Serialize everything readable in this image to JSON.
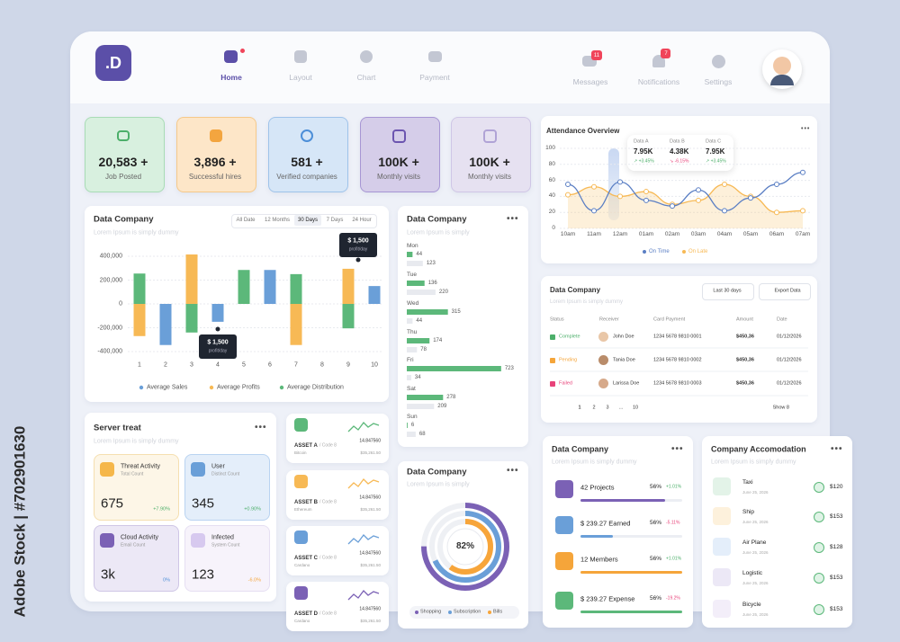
{
  "header": {
    "logo": ".D",
    "nav": [
      "Home",
      "Layout",
      "Chart",
      "Payment"
    ],
    "actions": [
      {
        "label": "Messages",
        "badge": "11"
      },
      {
        "label": "Notifications",
        "badge": "7"
      },
      {
        "label": "Settings"
      }
    ]
  },
  "stats": [
    {
      "value": "20,583 +",
      "label": "Job Posted"
    },
    {
      "value": "3,896 +",
      "label": "Successful hires"
    },
    {
      "value": "581 +",
      "label": "Verified companies"
    },
    {
      "value": "100K +",
      "label": "Monthly visits"
    },
    {
      "value": "100K +",
      "label": "Monthly visits"
    }
  ],
  "chart_data": [
    {
      "type": "bar",
      "title": "Data Company",
      "subtitle": "Lorem Ipsum is simply dummy",
      "tabs": [
        "All Date",
        "12 Months",
        "30 Days",
        "7 Days",
        "24 Hour"
      ],
      "active_tab": 2,
      "categories": [
        "1",
        "2",
        "3",
        "4",
        "5",
        "6",
        "7",
        "8",
        "9",
        "10"
      ],
      "series": [
        {
          "name": "Average Sales",
          "color": "#6a9fd8",
          "values": [
            null,
            -345000,
            null,
            -150000,
            null,
            285000,
            null,
            null,
            null,
            150000
          ]
        },
        {
          "name": "Average Profits",
          "color": "#f7b955",
          "values": [
            -270000,
            null,
            415000,
            null,
            130000,
            null,
            -345000,
            null,
            295000,
            null
          ]
        },
        {
          "name": "Average Distribution",
          "color": "#5cb87a",
          "values": [
            255000,
            null,
            -240000,
            null,
            285000,
            null,
            250000,
            null,
            -205000,
            null
          ]
        }
      ],
      "ylim": [
        -400000,
        400000
      ],
      "yticks": [
        {
          "value": 400000,
          "label": "400,000"
        },
        {
          "value": 200000,
          "label": "200,000"
        },
        0,
        {
          "value": -200000,
          "label": "-200,000"
        },
        {
          "value": -400000,
          "label": "-400,000"
        }
      ],
      "grid": true,
      "annotations": [
        {
          "text": "$ 1,500",
          "note": "profit/day"
        },
        {
          "text": "$ 1,500",
          "note": "profit/day"
        }
      ]
    },
    {
      "type": "hbar",
      "title": "Data Company",
      "subtitle": "Lorem Ipsum is simply",
      "categories": [
        "Mon",
        "Tue",
        "Wed",
        "Thu",
        "Fri",
        "Sat",
        "Sun"
      ],
      "series": [
        {
          "color": "#5cb87a",
          "values": [
            44,
            136,
            315,
            174,
            723,
            278,
            6
          ]
        },
        {
          "color": "#e8eaef",
          "values": [
            123,
            220,
            44,
            78,
            34,
            209,
            68
          ]
        }
      ],
      "xlim": [
        0,
        800
      ]
    },
    {
      "type": "radial",
      "title": "Data Company",
      "subtitle": "Lorem Ipsum is simply",
      "center_label": "82%",
      "categories": [
        "Shopping",
        "Subscription",
        "Bills"
      ],
      "values": [
        75,
        68,
        60
      ],
      "colors": [
        "#7b61b5",
        "#6a9fd8",
        "#f7a53a"
      ],
      "lim": [
        0,
        100
      ]
    },
    {
      "type": "line",
      "title": "Attendance Overview",
      "categories": [
        "10am",
        "11am",
        "12am",
        "01am",
        "02am",
        "03am",
        "04am",
        "05am",
        "06am",
        "07am"
      ],
      "series": [
        {
          "name": "On Time",
          "color": "#5b7fc4",
          "values": [
            55,
            22,
            58,
            35,
            28,
            48,
            22,
            38,
            55,
            70
          ]
        },
        {
          "name": "On Late",
          "color": "#f7b955",
          "values": [
            42,
            52,
            40,
            46,
            30,
            35,
            55,
            40,
            20,
            22
          ],
          "area": true
        }
      ],
      "ylim": [
        0,
        100
      ],
      "yticks": [
        0,
        20,
        40,
        60,
        80,
        100
      ],
      "grid": true,
      "stats": [
        {
          "name": "Data A",
          "value": "7.95K",
          "change": "↗ +3.45%"
        },
        {
          "name": "Data B",
          "value": "4.38K",
          "change": "↘ -6.15%"
        },
        {
          "name": "Data C",
          "value": "7.95K",
          "change": "↗ +3.45%"
        }
      ]
    }
  ],
  "table": {
    "title": "Data Company",
    "subtitle": "Lorem Ipsum is simply dummy",
    "filter": "Last 30 days",
    "export": "Export Data",
    "columns": [
      "Status",
      "Receiver",
      "Card Payment",
      "Amount",
      "Date"
    ],
    "rows": [
      [
        "Complete",
        "John Doe",
        "1234  5678  9810  0001",
        "$450,36",
        "01/12/2026"
      ],
      [
        "Pending",
        "Tania Doe",
        "1234  5678  9810  0002",
        "$450,36",
        "01/12/2026"
      ],
      [
        "Failed",
        "Larissa Doe",
        "1234  5678  9810  0003",
        "$450,36",
        "01/12/2026"
      ]
    ],
    "pages": [
      "1",
      "2",
      "3",
      "...",
      "10"
    ],
    "show": "Show 8"
  },
  "server": {
    "title": "Server treat",
    "subtitle": "Lorem Ipsum is simply dummy",
    "tiles": [
      {
        "name": "Threat Activity",
        "sub": "Total Count",
        "value": "675",
        "change": "+7.90%"
      },
      {
        "name": "User",
        "sub": "Distinct Count",
        "value": "345",
        "change": "+0.90%"
      },
      {
        "name": "Cloud Activity",
        "sub": "Email Count",
        "value": "3k",
        "change": "0%"
      },
      {
        "name": "Infected",
        "sub": "System Count",
        "value": "123",
        "change": "-6.0%"
      }
    ]
  },
  "assets": [
    {
      "name": "ASSET A",
      "code": "/ Code 8",
      "coin": "Bitcoin",
      "amount": "14.847560",
      "price": "$35,261.50"
    },
    {
      "name": "ASSET B",
      "code": "/ Code 8",
      "coin": "Ethereum",
      "amount": "14.847560",
      "price": "$35,261.50"
    },
    {
      "name": "ASSET C",
      "code": "/ Code 8",
      "coin": "Cardano",
      "amount": "14.847560",
      "price": "$35,261.50"
    },
    {
      "name": "ASSET D",
      "code": "/ Code 8",
      "coin": "Cardano",
      "amount": "14.847560",
      "price": "$35,261.50"
    }
  ],
  "progress": {
    "title": "Data Company",
    "subtitle": "Lorem Ipsum is simply dummy",
    "rows": [
      {
        "label": "42 Projects",
        "percent": "56%",
        "change": "+1.01%"
      },
      {
        "label": "$ 239.27 Earned",
        "percent": "56%",
        "change": "-5.11%"
      },
      {
        "label": "12 Members",
        "percent": "56%",
        "change": "+1.01%"
      },
      {
        "label": "$ 239.27 Expense",
        "percent": "56%",
        "change": "-19.2%"
      }
    ]
  },
  "accommodation": {
    "title": "Company Accomodation",
    "subtitle": "Lorem Ipsum is simply dummy",
    "rows": [
      {
        "name": "Taxi",
        "date": "June 25, 2026",
        "price": "$120"
      },
      {
        "name": "Ship",
        "date": "June 25, 2026",
        "price": "$153"
      },
      {
        "name": "Air Plane",
        "date": "June 25, 2026",
        "price": "$128"
      },
      {
        "name": "Logistic",
        "date": "June 25, 2026",
        "price": "$153"
      },
      {
        "name": "Bicycle",
        "date": "June 25, 2026",
        "price": "$153"
      }
    ]
  },
  "watermark": "Adobe Stock | #702901630"
}
